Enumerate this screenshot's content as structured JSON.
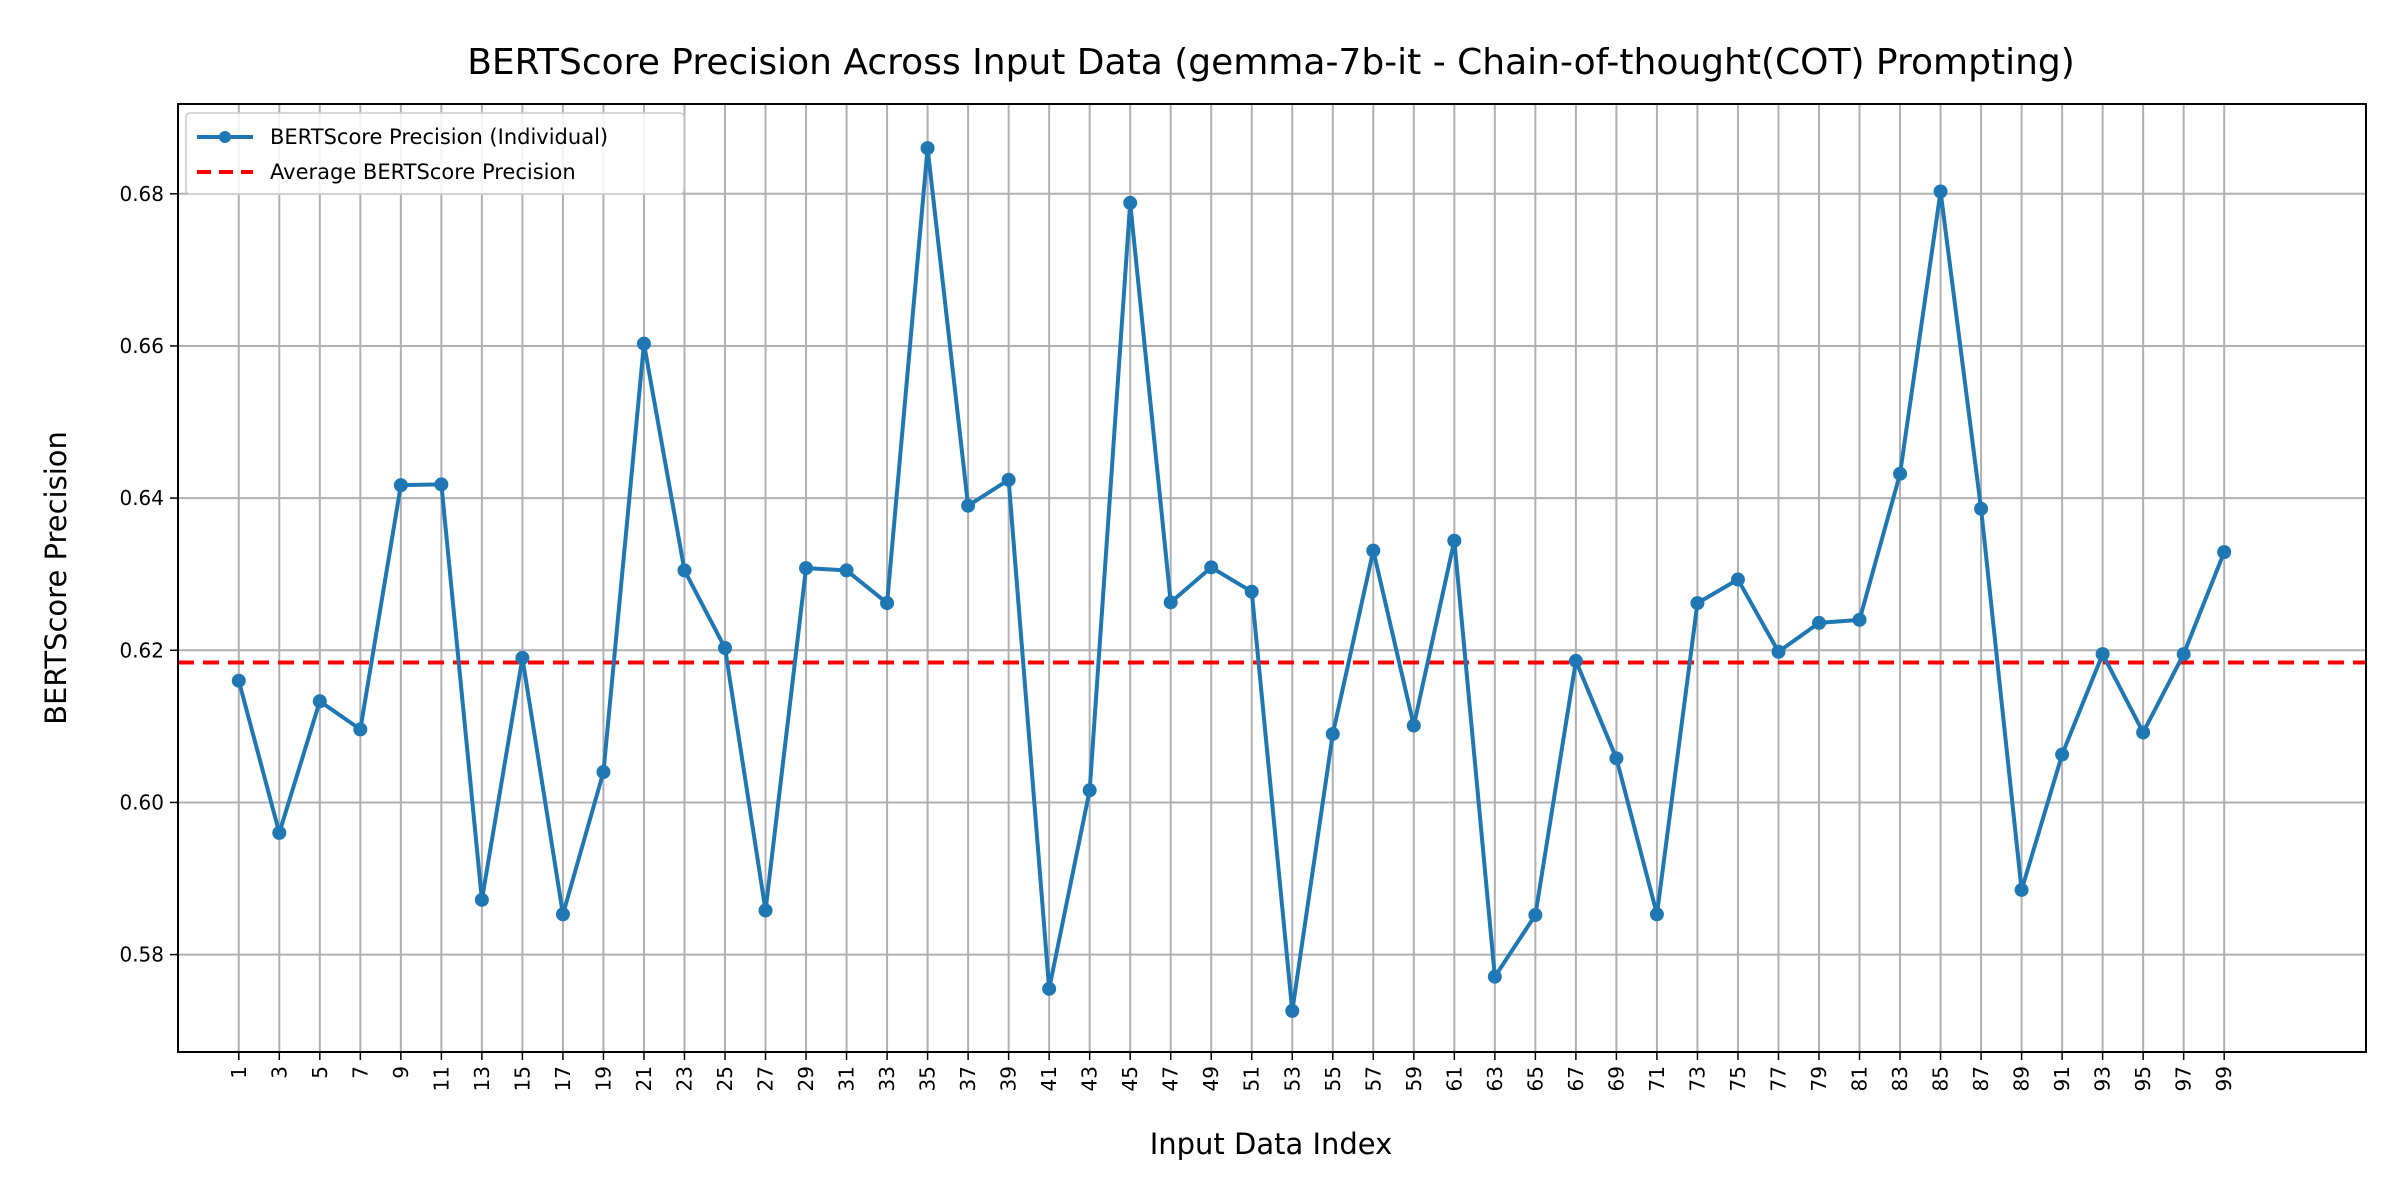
{
  "chart_data": {
    "type": "line",
    "title": "BERTScore Precision Across Input Data (gemma-7b-it - Chain-of-thought(COT) Prompting)",
    "xlabel": "Input Data Index",
    "ylabel": "BERTScore Precision",
    "ylim": [
      0.5672,
      0.6918
    ],
    "xlim": [
      -1.5,
      52.5
    ],
    "grid": true,
    "legend_position": "top-left",
    "x_tick_labels": [
      "1",
      "3",
      "5",
      "7",
      "9",
      "11",
      "13",
      "15",
      "17",
      "19",
      "21",
      "23",
      "25",
      "27",
      "29",
      "31",
      "33",
      "35",
      "37",
      "39",
      "41",
      "43",
      "45",
      "47",
      "49",
      "51",
      "53",
      "55",
      "57",
      "59",
      "61",
      "63",
      "65",
      "67",
      "69",
      "71",
      "73",
      "75",
      "77",
      "79",
      "81",
      "83",
      "85",
      "87",
      "89",
      "91",
      "93",
      "95",
      "97",
      "99"
    ],
    "y_ticks": [
      0.58,
      0.6,
      0.62,
      0.64,
      0.66,
      0.68
    ],
    "y_tick_labels": [
      "0.58",
      "0.60",
      "0.62",
      "0.64",
      "0.66",
      "0.68"
    ],
    "series": [
      {
        "name": "BERTScore Precision (Individual)",
        "color": "#1f77b4",
        "style": "solid-with-markers",
        "values": [
          0.616,
          0.596,
          0.6133,
          0.6096,
          0.6417,
          0.6418,
          0.5872,
          0.619,
          0.5853,
          0.604,
          0.6603,
          0.6305,
          0.6203,
          0.5858,
          0.6308,
          0.6305,
          0.6262,
          0.686,
          0.639,
          0.6424,
          0.5755,
          0.6016,
          0.6788,
          0.6263,
          0.6309,
          0.6277,
          0.5726,
          0.609,
          0.6331,
          0.6101,
          0.6344,
          0.5771,
          0.5852,
          0.6186,
          0.6058,
          0.5853,
          0.6262,
          0.6293,
          0.6198,
          0.6236,
          0.624,
          0.6432,
          0.6803,
          0.6386,
          0.5885,
          0.6063,
          0.6195,
          0.6092,
          0.6195,
          0.6329
        ]
      },
      {
        "name": "Average BERTScore Precision",
        "color": "#ff0000",
        "style": "dashed",
        "value": 0.6184
      }
    ]
  }
}
